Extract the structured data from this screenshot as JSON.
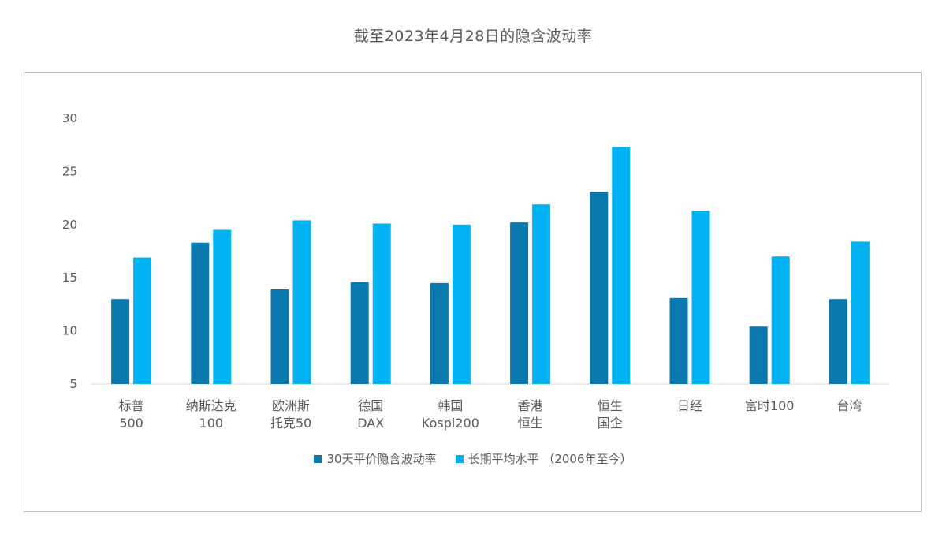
{
  "chart_data": {
    "type": "bar",
    "title": "截至2023年4月28日的隐含波动率",
    "xlabel": "",
    "ylabel": "",
    "ylim": [
      5,
      30
    ],
    "yticks": [
      5,
      10,
      15,
      20,
      25,
      30
    ],
    "grid": false,
    "legend_position": "bottom",
    "categories": [
      [
        "标普",
        "500"
      ],
      [
        "纳斯达克",
        "100"
      ],
      [
        "欧洲斯",
        "托克50"
      ],
      [
        "德国",
        "DAX"
      ],
      [
        "韩国",
        "Kospi200"
      ],
      [
        "香港",
        "恒生"
      ],
      [
        "恒生",
        "国企"
      ],
      [
        "日经"
      ],
      [
        "富时100"
      ],
      [
        "台湾"
      ]
    ],
    "series": [
      {
        "name": "30天平价隐含波动率",
        "color": "#0979AD",
        "values": [
          13.0,
          18.3,
          13.9,
          14.6,
          14.5,
          20.2,
          23.1,
          13.1,
          10.4,
          13.0
        ]
      },
      {
        "name": "长期平均水平 （2006年至今）",
        "color": "#00B2F1",
        "values": [
          16.9,
          19.5,
          20.4,
          20.1,
          20.0,
          21.9,
          27.3,
          21.3,
          17.0,
          18.4
        ]
      }
    ]
  }
}
